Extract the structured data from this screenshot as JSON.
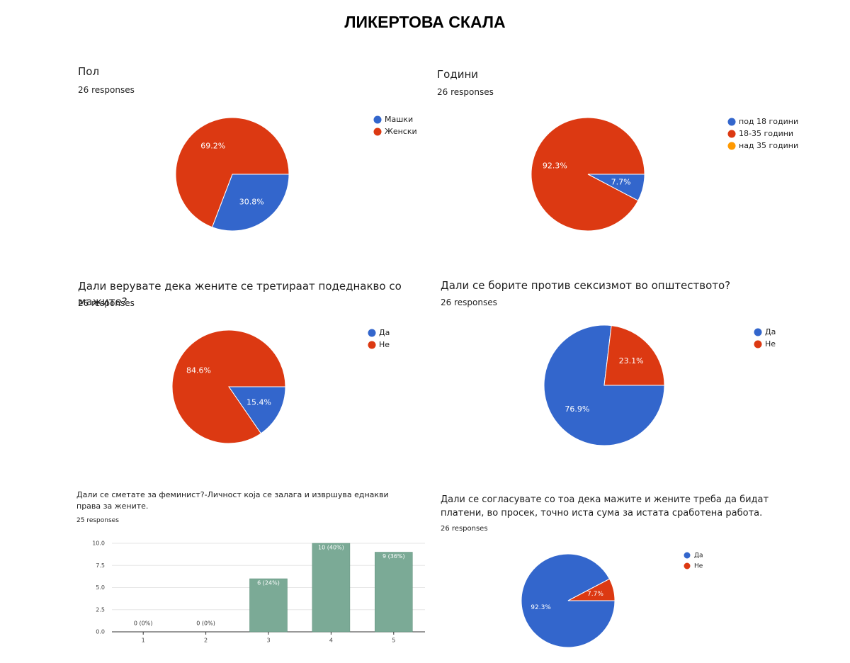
{
  "title": "ЛИКЕРТОВА СКАЛА",
  "chart_data": [
    {
      "type": "pie",
      "title": "Пол",
      "subtitle": "26 responses",
      "categories": [
        "Машки",
        "Женски"
      ],
      "values": [
        30.8,
        69.2
      ],
      "value_labels": [
        "30.8%",
        "69.2%"
      ],
      "colors": [
        "#3366cc",
        "#dc3912"
      ]
    },
    {
      "type": "pie",
      "title": "Години",
      "subtitle": "26 responses",
      "categories": [
        "под 18 години",
        "18-35 години",
        "над 35 години"
      ],
      "values": [
        7.7,
        92.3,
        0
      ],
      "value_labels": [
        "7.7%",
        "92.3%",
        null
      ],
      "colors": [
        "#3366cc",
        "#dc3912",
        "#ff9900"
      ]
    },
    {
      "type": "pie",
      "title": "Дали верувате дека жените се третираат подеднакво со мажите?",
      "subtitle": "26 responses",
      "categories": [
        "Да",
        "Не"
      ],
      "values": [
        15.4,
        84.6
      ],
      "value_labels": [
        "15.4%",
        "84.6%"
      ],
      "colors": [
        "#3366cc",
        "#dc3912"
      ]
    },
    {
      "type": "pie",
      "title": "Дали се борите против сексизмот во општеството?",
      "subtitle": "26 responses",
      "categories": [
        "Да",
        "Не"
      ],
      "values": [
        76.9,
        23.1
      ],
      "value_labels": [
        "76.9%",
        "23.1%"
      ],
      "colors": [
        "#3366cc",
        "#dc3912"
      ]
    },
    {
      "type": "bar",
      "title": "Дали се сметате за феминист?-Личност која се залага и извршува еднакви права за жените.",
      "subtitle": "25 responses",
      "categories": [
        "1",
        "2",
        "3",
        "4",
        "5"
      ],
      "values": [
        0,
        0,
        6,
        10,
        9
      ],
      "value_labels": [
        "0 (0%)",
        "0 (0%)",
        "6 (24%)",
        "10 (40%)",
        "9 (36%)"
      ],
      "color": "#7baa96",
      "ylim": [
        0,
        10
      ],
      "yticks": [
        {
          "value": 0,
          "label": "0.0"
        },
        {
          "value": 2.5,
          "label": "2.5"
        },
        {
          "value": 5,
          "label": "5.0"
        },
        {
          "value": 7.5,
          "label": "7.5"
        },
        {
          "value": 10,
          "label": "10.0"
        }
      ],
      "grid": true
    },
    {
      "type": "pie",
      "title": "Дали се согласувате со тоа дека мажите и жените треба да бидат платени, во просек, точно иста сума за истата сработена работа.",
      "subtitle": "26 responses",
      "categories": [
        "Да",
        "Не"
      ],
      "values": [
        92.3,
        7.7
      ],
      "value_labels": [
        "92.3%",
        "7.7%"
      ],
      "colors": [
        "#3366cc",
        "#dc3912"
      ]
    }
  ]
}
